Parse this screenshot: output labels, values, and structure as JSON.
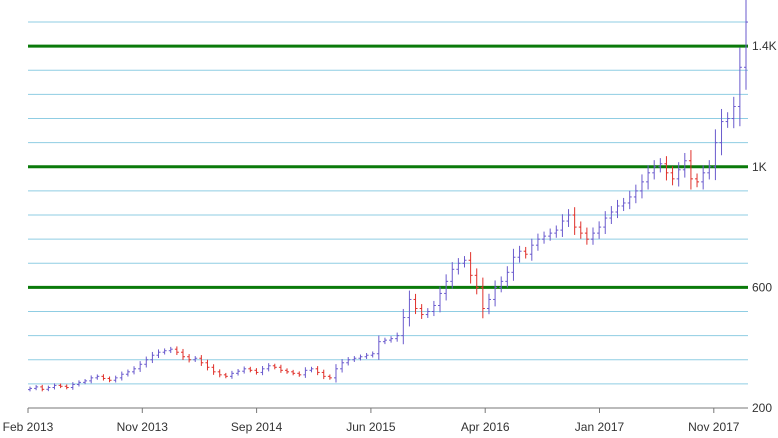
{
  "chart_data": {
    "type": "ohlc",
    "x_tick_labels": [
      "Feb 2013",
      "Nov 2013",
      "Sep 2014",
      "Jun 2015",
      "Apr 2016",
      "Jan 2017",
      "Nov 2017"
    ],
    "y_tick_labels": [
      {
        "value": 200,
        "label": "200"
      },
      {
        "value": 600,
        "label": "600"
      },
      {
        "value": 1000,
        "label": "1K"
      },
      {
        "value": 1400,
        "label": "1.4K"
      }
    ],
    "ylim": [
      200,
      1520
    ],
    "x_start": "2013-02",
    "x_end": "2018-02",
    "minor_gridlines_every": 80,
    "grid": true,
    "colors": {
      "up": "#6a5acd",
      "down": "#e0302a",
      "minor_grid": "#8fcde3",
      "major_grid": "#0a7a0a",
      "axis": "#777777"
    },
    "closes": [
      265,
      270,
      262,
      268,
      275,
      272,
      268,
      278,
      285,
      290,
      300,
      305,
      298,
      292,
      300,
      312,
      320,
      330,
      345,
      360,
      375,
      385,
      390,
      395,
      385,
      370,
      360,
      365,
      350,
      335,
      320,
      310,
      305,
      315,
      322,
      330,
      325,
      318,
      330,
      340,
      335,
      325,
      320,
      315,
      310,
      325,
      330,
      318,
      305,
      300,
      330,
      350,
      360,
      365,
      370,
      375,
      380,
      420,
      425,
      430,
      440,
      500,
      560,
      530,
      510,
      520,
      540,
      580,
      620,
      660,
      680,
      690,
      640,
      600,
      530,
      560,
      600,
      620,
      650,
      700,
      720,
      710,
      740,
      760,
      770,
      780,
      790,
      820,
      840,
      800,
      780,
      760,
      780,
      800,
      830,
      850,
      870,
      880,
      900,
      920,
      950,
      980,
      1000,
      1010,
      980,
      960,
      990,
      1020,
      960,
      950,
      980,
      1000,
      1080,
      1150,
      1160,
      1200,
      1330,
      1480
    ]
  }
}
